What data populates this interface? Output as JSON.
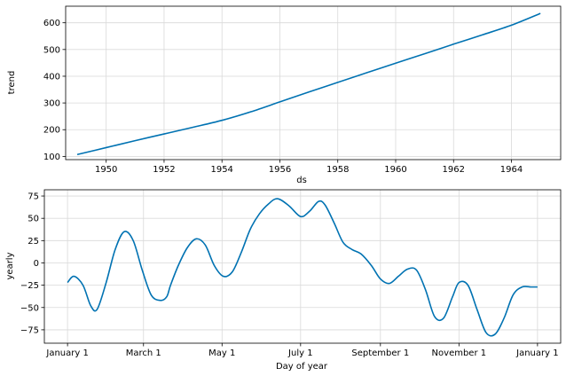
{
  "chart_data": [
    {
      "type": "line",
      "xlabel": "ds",
      "ylabel": "trend",
      "xlim": [
        1948.6,
        1965.7
      ],
      "ylim": [
        88,
        662
      ],
      "xticks": [
        1950,
        1952,
        1954,
        1956,
        1958,
        1960,
        1962,
        1964
      ],
      "xtick_labels": [
        "1950",
        "1952",
        "1954",
        "1956",
        "1958",
        "1960",
        "1962",
        "1964"
      ],
      "yticks": [
        100,
        200,
        300,
        400,
        500,
        600
      ],
      "ytick_labels": [
        "100",
        "200",
        "300",
        "400",
        "500",
        "600"
      ],
      "grid": true,
      "series": [
        {
          "color": "#0072B2",
          "x": [
            1949.0,
            1950.0,
            1951.0,
            1952.0,
            1953.0,
            1954.0,
            1955.0,
            1956.0,
            1957.0,
            1958.0,
            1959.0,
            1960.0,
            1961.0,
            1962.0,
            1963.0,
            1964.0,
            1965.0
          ],
          "y": [
            107,
            133,
            159,
            184,
            209,
            235,
            267,
            304,
            341,
            377,
            413,
            449,
            484,
            520,
            555,
            591,
            635
          ]
        }
      ]
    },
    {
      "type": "line",
      "xlabel": "Day of year",
      "ylabel": "yearly",
      "xlim": [
        -18,
        383
      ],
      "ylim": [
        -90,
        82
      ],
      "xticks": [
        0,
        59,
        120,
        181,
        243,
        304,
        365
      ],
      "xtick_labels": [
        "January 1",
        "March 1",
        "May 1",
        "July 1",
        "September 1",
        "November 1",
        "January 1"
      ],
      "yticks": [
        -75,
        -50,
        -25,
        0,
        25,
        50,
        75
      ],
      "ytick_labels": [
        "−75",
        "−50",
        "−25",
        "0",
        "25",
        "50",
        "75"
      ],
      "grid": true,
      "series": [
        {
          "color": "#0072B2",
          "x": [
            0,
            5,
            12,
            18,
            23,
            30,
            37,
            44,
            51,
            58,
            65,
            72,
            77,
            80,
            86,
            93,
            100,
            107,
            114,
            121,
            128,
            135,
            142,
            149,
            156,
            163,
            172,
            181,
            188,
            195,
            200,
            207,
            214,
            221,
            228,
            236,
            243,
            250,
            257,
            264,
            271,
            278,
            285,
            292,
            299,
            304,
            311,
            318,
            325,
            332,
            339,
            346,
            353,
            360,
            365
          ],
          "y": [
            -22,
            -15,
            -25,
            -48,
            -52,
            -22,
            15,
            35,
            25,
            -8,
            -36,
            -42,
            -38,
            -25,
            -3,
            17,
            27,
            20,
            -3,
            -15,
            -10,
            12,
            38,
            55,
            66,
            72,
            64,
            52,
            58,
            69,
            65,
            45,
            23,
            15,
            10,
            -3,
            -18,
            -23,
            -15,
            -7,
            -8,
            -30,
            -60,
            -62,
            -38,
            -22,
            -25,
            -52,
            -78,
            -80,
            -62,
            -36,
            -27,
            -27,
            -27
          ]
        }
      ]
    }
  ]
}
